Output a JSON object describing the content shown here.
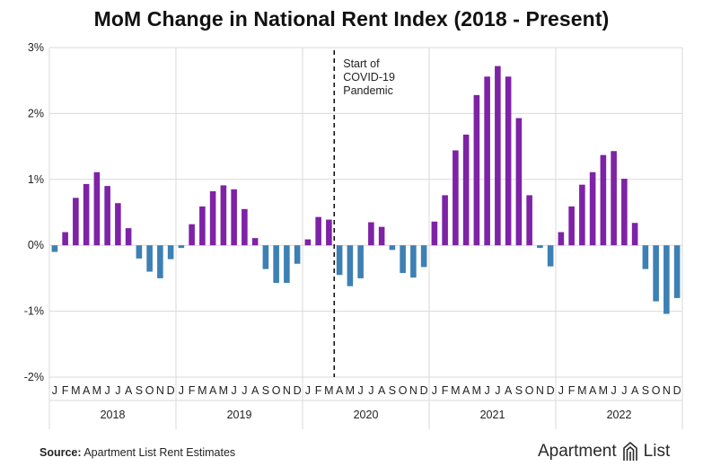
{
  "chart_data": {
    "type": "bar",
    "title": "MoM Change in National Rent Index (2018 - Present)",
    "ylim": [
      -2,
      3
    ],
    "yticks": [
      {
        "value": 3,
        "label": "3%"
      },
      {
        "value": 2,
        "label": "2%"
      },
      {
        "value": 1,
        "label": "1%"
      },
      {
        "value": 0,
        "label": "0%"
      },
      {
        "value": -1,
        "label": "-1%"
      },
      {
        "value": -2,
        "label": "-2%"
      }
    ],
    "grid": true,
    "years": [
      "2018",
      "2019",
      "2020",
      "2021",
      "2022"
    ],
    "month_labels": [
      "J",
      "F",
      "M",
      "A",
      "M",
      "J",
      "J",
      "A",
      "S",
      "O",
      "N",
      "D"
    ],
    "values": [
      -0.1,
      0.2,
      0.72,
      0.93,
      1.11,
      0.9,
      0.64,
      0.26,
      -0.2,
      -0.4,
      -0.5,
      -0.21,
      -0.04,
      0.32,
      0.59,
      0.82,
      0.91,
      0.85,
      0.55,
      0.11,
      -0.36,
      -0.57,
      -0.57,
      -0.28,
      0.09,
      0.43,
      0.39,
      -0.45,
      -0.62,
      -0.5,
      0.35,
      0.28,
      -0.07,
      -0.42,
      -0.49,
      -0.33,
      0.36,
      0.76,
      1.44,
      1.68,
      2.28,
      2.56,
      2.72,
      2.56,
      1.93,
      0.76,
      -0.04,
      -0.32,
      0.2,
      0.59,
      0.92,
      1.11,
      1.37,
      1.43,
      1.01,
      0.34,
      -0.36,
      -0.85,
      -1.04,
      -0.8
    ],
    "colors": {
      "positive": "#7e22a6",
      "negative": "#3d80b4"
    },
    "annotation": {
      "after_index": 26,
      "lines": [
        "Start of",
        "COVID-19",
        "Pandemic"
      ]
    }
  },
  "footer": {
    "source_label": "Source:",
    "source_text": "Apartment List Rent Estimates",
    "brand_left": "Apartment",
    "brand_right": "List",
    "brand_icon": "apartment-list-logo-icon"
  }
}
